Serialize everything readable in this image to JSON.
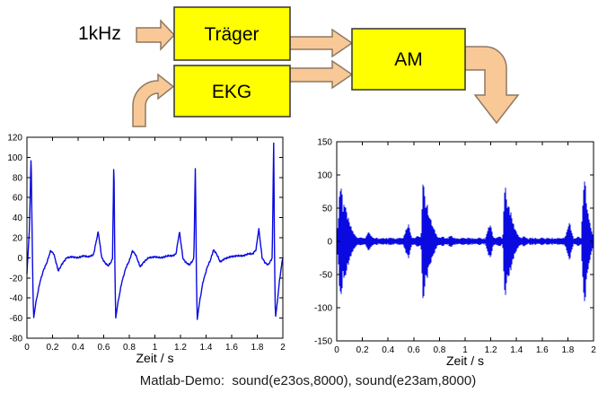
{
  "diagram": {
    "input_label": "1kHz",
    "blocks": [
      {
        "id": "traeger",
        "label": "Träger"
      },
      {
        "id": "ekg",
        "label": "EKG"
      },
      {
        "id": "am",
        "label": "AM"
      }
    ],
    "colors": {
      "box_fill": "#ffff00",
      "box_border": "#3d3d3d",
      "arrow_fill": "#f8c897",
      "arrow_border": "#8d7962"
    }
  },
  "caption": {
    "text": "Matlab-Demo:  sound(e23os,8000), sound(e23am,8000)"
  },
  "chart_data": [
    {
      "id": "ekg_plot",
      "type": "line",
      "title": "",
      "xlabel": "Zeit / s",
      "ylabel": "",
      "xlim": [
        0,
        2
      ],
      "ylim": [
        -80,
        120
      ],
      "xticks": [
        0,
        0.2,
        0.4,
        0.6,
        0.8,
        1,
        1.2,
        1.4,
        1.6,
        1.8,
        2
      ],
      "xtick_labels": [
        "0",
        "0.2",
        "0.4",
        "0.6",
        "0.8",
        "1",
        "1.2",
        "1.4",
        "1.6",
        "1.8",
        "2"
      ],
      "yticks": [
        -80,
        -60,
        -40,
        -20,
        0,
        20,
        40,
        60,
        80,
        100,
        120
      ],
      "ytick_labels": [
        "-80",
        "-60",
        "-40",
        "-20",
        "0",
        "20",
        "40",
        "60",
        "80",
        "100",
        "120"
      ],
      "grid": false,
      "line_color": "#0a0ae0",
      "line_width": 1.4,
      "description": "EKG signal, 4 heartbeats in 2 s; R peaks at t=0.033,0.68,1.32,1.93 s with amplitudes 104,101,96,118 and S dips to about -60; T/P bumps ~26-29 at t=0.56,1.19,1.81",
      "keypoints": [
        [
          0,
          -16
        ],
        [
          0.02,
          30
        ],
        [
          0.0325,
          104
        ],
        [
          0.041,
          20
        ],
        [
          0.0475,
          -35
        ],
        [
          0.0525,
          -60
        ],
        [
          0.068,
          -46
        ],
        [
          0.1,
          -25
        ],
        [
          0.13,
          -12
        ],
        [
          0.155,
          -5
        ],
        [
          0.185,
          7
        ],
        [
          0.21,
          4
        ],
        [
          0.245,
          -13
        ],
        [
          0.275,
          -6
        ],
        [
          0.31,
          0
        ],
        [
          0.35,
          1
        ],
        [
          0.4,
          0
        ],
        [
          0.44,
          2
        ],
        [
          0.48,
          1
        ],
        [
          0.52,
          3
        ],
        [
          0.557,
          26
        ],
        [
          0.585,
          0
        ],
        [
          0.61,
          -5
        ],
        [
          0.635,
          -8
        ],
        [
          0.66,
          -4
        ],
        [
          0.669,
          0
        ],
        [
          0.6795,
          101
        ],
        [
          0.687,
          -5
        ],
        [
          0.6935,
          -60
        ],
        [
          0.711,
          -45
        ],
        [
          0.74,
          -25
        ],
        [
          0.773,
          -10
        ],
        [
          0.8,
          -3
        ],
        [
          0.825,
          7
        ],
        [
          0.85,
          3
        ],
        [
          0.885,
          -9
        ],
        [
          0.915,
          -4
        ],
        [
          0.95,
          0
        ],
        [
          1,
          1
        ],
        [
          1.05,
          0
        ],
        [
          1.1,
          2
        ],
        [
          1.14,
          2
        ],
        [
          1.165,
          4
        ],
        [
          1.192,
          26
        ],
        [
          1.22,
          -1
        ],
        [
          1.245,
          -5
        ],
        [
          1.27,
          -7
        ],
        [
          1.295,
          -3
        ],
        [
          1.305,
          0
        ],
        [
          1.3165,
          96
        ],
        [
          1.3235,
          -10
        ],
        [
          1.3305,
          -62
        ],
        [
          1.348,
          -45
        ],
        [
          1.376,
          -24
        ],
        [
          1.41,
          -9
        ],
        [
          1.435,
          -2
        ],
        [
          1.458,
          8
        ],
        [
          1.482,
          4
        ],
        [
          1.51,
          -4
        ],
        [
          1.545,
          -1
        ],
        [
          1.59,
          1
        ],
        [
          1.64,
          2
        ],
        [
          1.69,
          2
        ],
        [
          1.73,
          4
        ],
        [
          1.765,
          4
        ],
        [
          1.79,
          8
        ],
        [
          1.812,
          29
        ],
        [
          1.838,
          0
        ],
        [
          1.862,
          -5
        ],
        [
          1.885,
          -7
        ],
        [
          1.905,
          -3
        ],
        [
          1.917,
          0
        ],
        [
          1.9285,
          118
        ],
        [
          1.9355,
          -5
        ],
        [
          1.942,
          -60
        ],
        [
          1.956,
          -45
        ],
        [
          1.972,
          -25
        ],
        [
          1.985,
          -12
        ],
        [
          1.993,
          -5
        ],
        [
          2,
          1
        ]
      ]
    },
    {
      "id": "am_plot",
      "type": "line",
      "title": "",
      "xlabel": "Zeit / s",
      "ylabel": "",
      "xlim": [
        0,
        2
      ],
      "ylim": [
        -150,
        150
      ],
      "xticks": [
        0,
        0.2,
        0.4,
        0.6,
        0.8,
        1,
        1.2,
        1.4,
        1.6,
        1.8,
        2
      ],
      "xtick_labels": [
        "0",
        "0.2",
        "0.4",
        "0.6",
        "0.8",
        "1",
        "1.2",
        "1.4",
        "1.6",
        "1.8",
        "2"
      ],
      "yticks": [
        -150,
        -100,
        -50,
        0,
        50,
        100,
        150
      ],
      "ytick_labels": [
        "-150",
        "-100",
        "-50",
        "0",
        "50",
        "100",
        "150"
      ],
      "grid": false,
      "line_color": "#0a0ae0",
      "line_width": 1,
      "description": "AM signal: 1 kHz carrier amplitude-modulated by the EKG; symmetric envelope = |EKG|, quiet band ~±4",
      "envelope_source": "ekg_plot",
      "envelope_floor": 3.2,
      "envelope_peaks": [
        [
          0.035,
          103
        ],
        [
          0.68,
          100
        ],
        [
          1.315,
          96
        ],
        [
          1.93,
          118
        ]
      ]
    }
  ]
}
